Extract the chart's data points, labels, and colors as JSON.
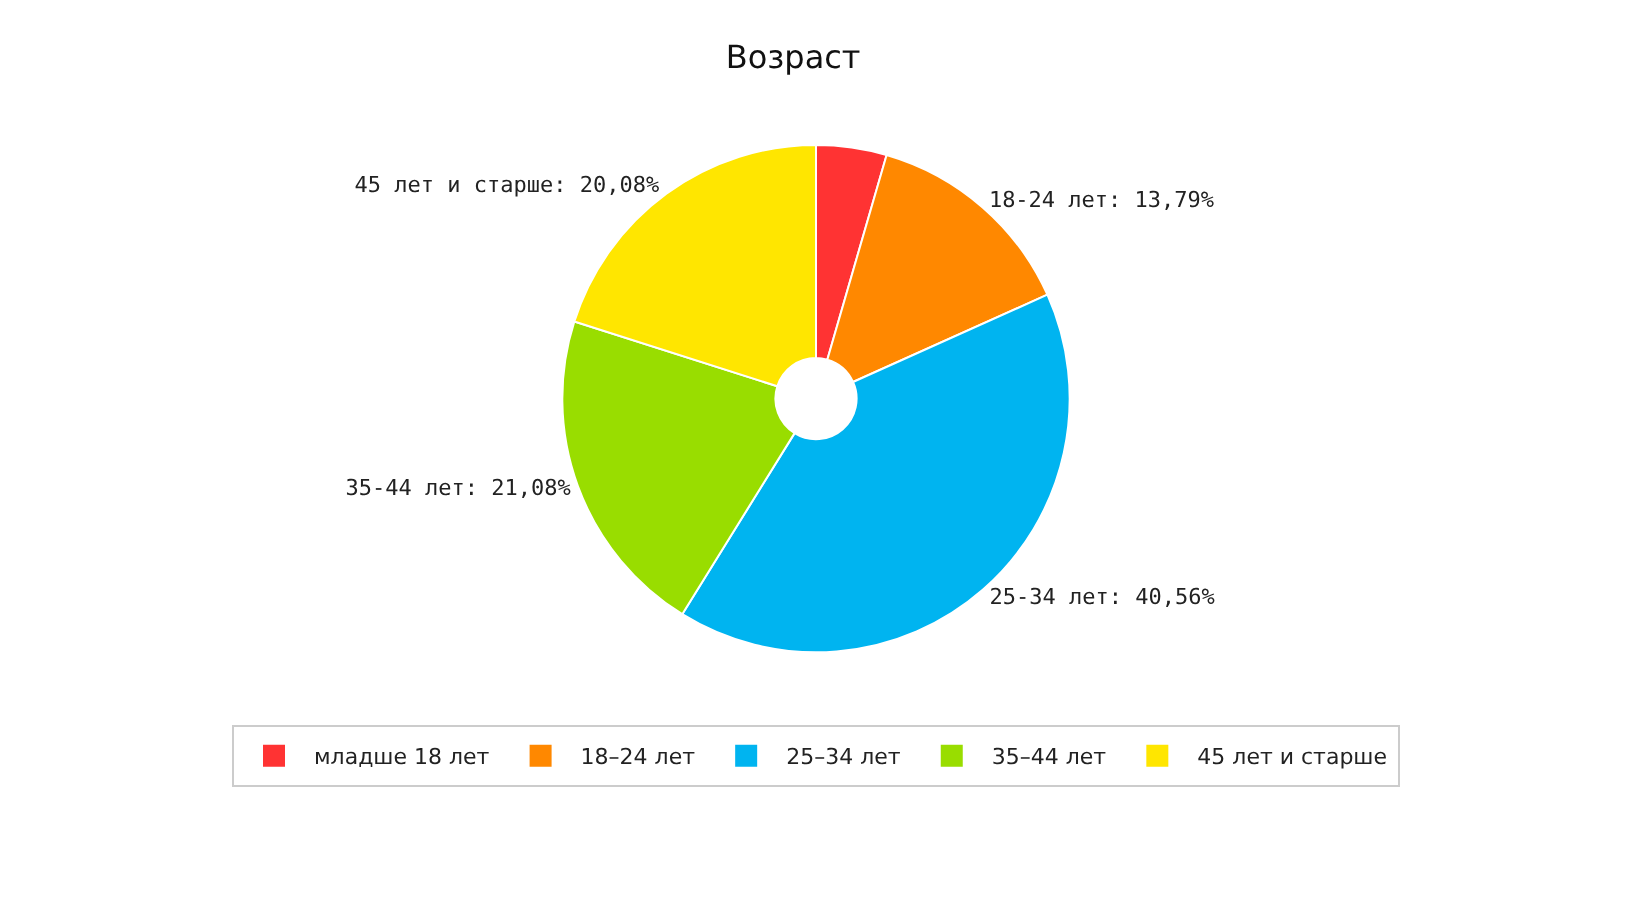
{
  "chart_data": {
    "type": "donut",
    "title": "Возраст",
    "categories": [
      "младше 18 лет",
      "18–24 лет",
      "25–34 лет",
      "35–44 лет",
      "45 лет и старше"
    ],
    "values": [
      4.49,
      13.79,
      40.56,
      21.08,
      20.08
    ],
    "value_labels": [
      null,
      "18-24 лет: 13,79%",
      "25-34 лет: 40,56%",
      "35-44 лет: 21,08%",
      "45 лет и старше: 20,08%"
    ],
    "colors": [
      "#ff3333",
      "#ff8800",
      "#00b4f0",
      "#99dd00",
      "#ffe600"
    ],
    "legend": "bottom"
  }
}
